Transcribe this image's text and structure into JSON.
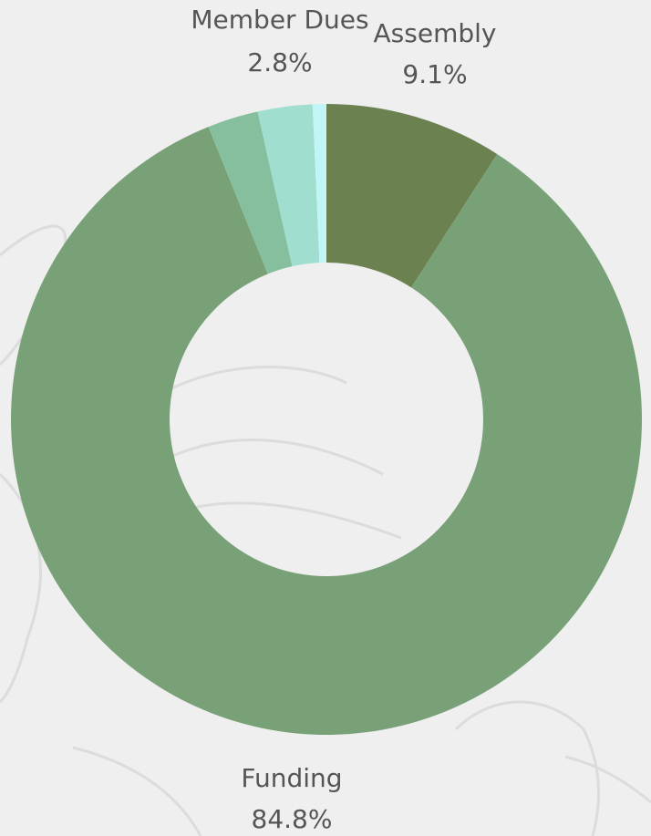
{
  "chart_data": {
    "type": "pie",
    "categories": [
      "Assembly",
      "Funding",
      null,
      "Member Dues",
      null
    ],
    "values": [
      9.1,
      84.8,
      2.6,
      2.8,
      0.7
    ],
    "value_labels": [
      "9.1%",
      "84.8%",
      null,
      "2.8%",
      null
    ],
    "colors": [
      "#6b8150",
      "#79a178",
      "#86bf9d",
      "#a0dfd0",
      "#c2f6f6"
    ]
  }
}
